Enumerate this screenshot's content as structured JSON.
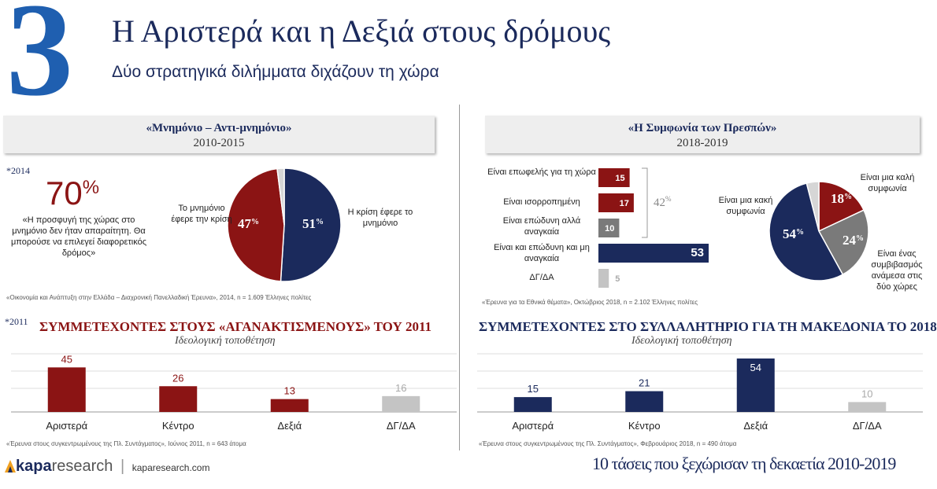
{
  "header": {
    "number": "3",
    "title": "Η Αριστερά και η Δεξιά στους δρόμους",
    "subtitle": "Δύο στρατηγικά διλήμματα διχάζουν τη χώρα"
  },
  "left_panel": {
    "box_title": "«Μνημόνιο – Αντι-μνημόνιο»",
    "box_years": "2010-2015",
    "survey_year": "*2014",
    "big_pct": "70",
    "big_pct_sign": "%",
    "quote": "«Η προσφυγή της χώρας στο μνημόνιο δεν ήταν απαραίτητη. Θα μπορούσε να επιλεγεί διαφορετικός δρόμος»",
    "source": "«Οικονομία και Ανάπτυξη στην Ελλάδα – Διαχρονική Πανελλαδική Έρευνα», 2014, n = 1.609 Έλληνες πολίτες"
  },
  "right_panel": {
    "box_title": "«Η Συμφωνία των Πρεσπών»",
    "box_years": "2018-2019",
    "bracket_total": "42",
    "source": "«Έρευνα για τα Εθνικά θέματα», Οκτώβριος 2018, n = 2.102 Έλληνες πολίτες"
  },
  "bottom_left": {
    "survey_year": "*2011",
    "title": "ΣΥΜΜΕΤΕΧΟΝΤΕΣ ΣΤΟΥΣ «ΑΓΑΝΑΚΤΙΣΜΕΝΟΥΣ» ΤΟΥ 2011",
    "subtitle": "Ιδεολογική τοποθέτηση",
    "source": "«Έρευνα στους συγκεντρωμένους της Πλ. Συντάγματος», Ιούνιος 2011, n = 643 άτομα"
  },
  "bottom_right": {
    "title": "ΣΥΜΜΕΤΕΧΟΝΤΕΣ ΣΤΟ ΣΥΛΛΑΛΗΤΗΡΙΟ ΓΙΑ ΤΗ ΜΑΚΕΔΟΝΙΑ ΤΟ 2018",
    "subtitle": "Ιδεολογική τοποθέτηση",
    "source": "«Έρευνα στους συγκεντρωμένους της Πλ. Συντάγματος», Φεβρουάριος 2018, n = 490 άτομα"
  },
  "footer": {
    "logo_bold": "kapa",
    "logo_light": "research",
    "url": "kaparesearch.com",
    "tagline": "10 τάσεις που ξεχώρισαν τη δεκαετία 2010-2019"
  },
  "colors": {
    "navy": "#1b2a5c",
    "darkred": "#8b1414",
    "gray": "#7a7a7a",
    "lightgray": "#c4c4c4",
    "blue3": "#1f5fb0"
  },
  "chart_data": [
    {
      "type": "pie",
      "labels": [
        "Η κρίση έφερε το μνημόνιο",
        "Το μνημόνιο έφερε την κρίση",
        ""
      ],
      "values": [
        51,
        47,
        2
      ],
      "colors": [
        "#1b2a5c",
        "#8b1414",
        "#d6d6d6"
      ]
    },
    {
      "type": "bar",
      "orientation": "horizontal",
      "categories": [
        "Είναι επωφελής για τη χώρα",
        "Είναι ισορροπημένη",
        "Είναι επώδυνη αλλά αναγκαία",
        "Είναι και επώδυνη και μη αναγκαία",
        "ΔΓ/ΔΑ"
      ],
      "values": [
        15,
        17,
        10,
        53,
        5
      ],
      "colors": [
        "#8b1414",
        "#8b1414",
        "#7a7a7a",
        "#1b2a5c",
        "#c4c4c4"
      ]
    },
    {
      "type": "pie",
      "labels": [
        "Είναι μια καλή συμφωνία",
        "Είναι ένας συμβιβασμός ανάμεσα στις δύο χώρες",
        "Είναι μια κακή συμφωνία",
        ""
      ],
      "values": [
        18,
        24,
        54,
        4
      ],
      "colors": [
        "#8b1414",
        "#7a7a7a",
        "#1b2a5c",
        "#d6d6d6"
      ]
    },
    {
      "type": "bar",
      "categories": [
        "Αριστερά",
        "Κέντρο",
        "Δεξιά",
        "ΔΓ/ΔΑ"
      ],
      "values": [
        45,
        26,
        13,
        16
      ],
      "colors": [
        "#8b1414",
        "#8b1414",
        "#8b1414",
        "#c4c4c4"
      ]
    },
    {
      "type": "bar",
      "categories": [
        "Αριστερά",
        "Κέντρο",
        "Δεξιά",
        "ΔΓ/ΔΑ"
      ],
      "values": [
        15,
        21,
        54,
        10
      ],
      "colors": [
        "#1b2a5c",
        "#1b2a5c",
        "#1b2a5c",
        "#c4c4c4"
      ]
    }
  ]
}
